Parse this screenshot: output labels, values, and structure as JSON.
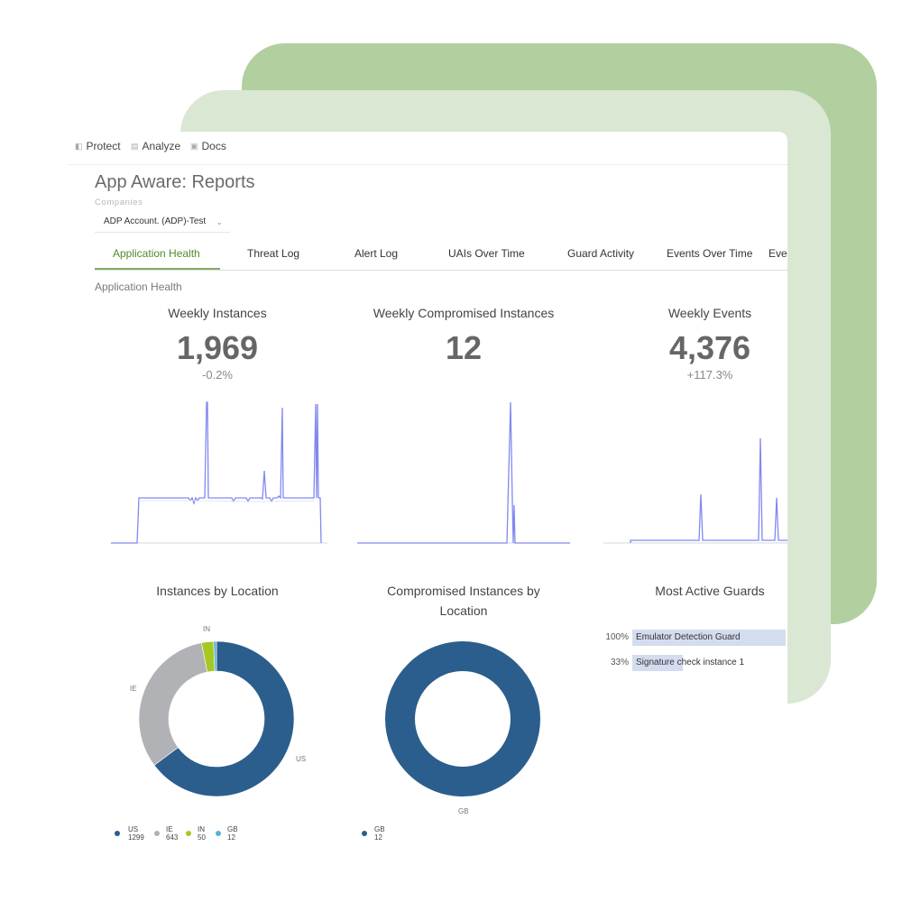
{
  "colors": {
    "accent_green": "#4f8a2a",
    "deco_back": "#b2cfa0",
    "deco_mid": "#d9e7d3",
    "line": "#8089ef",
    "us": "#2b5e8c",
    "ie": "#b0b2b5",
    "in": "#a6c824",
    "gb": "#5ab1d8",
    "guard_bar": "#d4dcef"
  },
  "nav": [
    {
      "label": "Protect",
      "icon": "shield-icon"
    },
    {
      "label": "Analyze",
      "icon": "bar-chart-icon"
    },
    {
      "label": "Docs",
      "icon": "document-icon"
    }
  ],
  "page": {
    "title": "App Aware: Reports",
    "companies_label": "Companies",
    "company_selected": "ADP Account. (ADP)-Test"
  },
  "tabs": [
    "Application Health",
    "Threat Log",
    "Alert Log",
    "UAIs Over Time",
    "Guard Activity",
    "Events Over Time",
    "Eve"
  ],
  "section_label": "Application Health",
  "metrics": {
    "instances": {
      "title": "Weekly Instances",
      "value": "1,969",
      "delta": "-0.2%"
    },
    "compromised": {
      "title": "Weekly Compromised Instances",
      "value": "12"
    },
    "events": {
      "title": "Weekly Events",
      "value": "4,376",
      "delta": "+117.3%"
    }
  },
  "location_chart": {
    "title": "Instances by Location"
  },
  "compromised_location_chart": {
    "title": "Compromised Instances by Location"
  },
  "guards": {
    "title": "Most Active Guards",
    "rows": [
      {
        "pct": "100%",
        "name": "Emulator Detection Guard",
        "fraction": 1.0
      },
      {
        "pct": "33%",
        "name": "Signature check instance 1",
        "fraction": 0.33
      }
    ]
  },
  "chart_data": [
    {
      "type": "pie",
      "title": "Instances by Location",
      "labels": [
        "US",
        "IE",
        "IN",
        "GB"
      ],
      "values": [
        1299,
        643,
        50,
        12
      ],
      "colors": [
        "#2b5e8c",
        "#b0b2b5",
        "#a6c824",
        "#5ab1d8"
      ],
      "legend": [
        {
          "label": "US",
          "value": "1299"
        },
        {
          "label": "IE",
          "value": "643"
        },
        {
          "label": "IN",
          "value": "50"
        },
        {
          "label": "GB",
          "value": "12"
        }
      ]
    },
    {
      "type": "pie",
      "title": "Compromised Instances by Location",
      "labels": [
        "GB"
      ],
      "values": [
        12
      ],
      "colors": [
        "#2b5e8c"
      ],
      "legend": [
        {
          "label": "GB",
          "value": "12"
        }
      ]
    }
  ]
}
